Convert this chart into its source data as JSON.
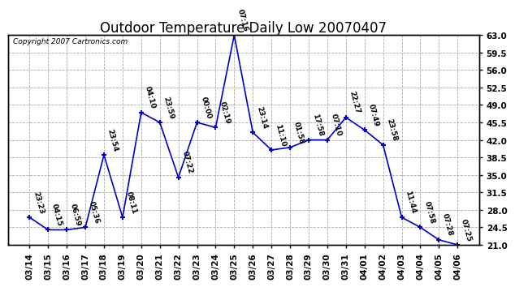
{
  "title": "Outdoor Temperature Daily Low 20070407",
  "copyright": "Copyright 2007 Cartronics.com",
  "x_labels": [
    "03/14",
    "03/15",
    "03/16",
    "03/17",
    "03/18",
    "03/19",
    "03/20",
    "03/21",
    "03/22",
    "03/23",
    "03/24",
    "03/25",
    "03/26",
    "03/27",
    "03/28",
    "03/29",
    "03/30",
    "03/31",
    "04/01",
    "04/02",
    "04/03",
    "04/04",
    "04/05",
    "04/06"
  ],
  "y_values": [
    26.5,
    24.0,
    24.0,
    24.5,
    39.0,
    26.5,
    47.5,
    45.5,
    34.5,
    45.5,
    44.5,
    63.0,
    43.5,
    40.0,
    40.5,
    42.0,
    42.0,
    46.5,
    44.0,
    41.0,
    26.5,
    24.5,
    22.0,
    21.0
  ],
  "time_labels": [
    "23:23",
    "04:15",
    "06:59",
    "05:36",
    "23:54",
    "08:11",
    "04:10",
    "23:59",
    "07:22",
    "00:00",
    "02:19",
    "07:16",
    "23:14",
    "11:10",
    "01:58",
    "17:58",
    "07:10",
    "22:27",
    "07:49",
    "23:58",
    "11:44",
    "07:58",
    "07:28",
    "07:25"
  ],
  "line_color": "#0000cc",
  "marker_color": "#0000cc",
  "bg_color": "#ffffff",
  "grid_color": "#aaaaaa",
  "ylim_min": 21.0,
  "ylim_max": 63.0,
  "yticks": [
    21.0,
    24.5,
    28.0,
    31.5,
    35.0,
    38.5,
    42.0,
    45.5,
    49.0,
    52.5,
    56.0,
    59.5,
    63.0
  ],
  "title_fontsize": 12,
  "copyright_fontsize": 6.5,
  "label_fontsize": 6.5,
  "tick_fontsize": 7.5
}
